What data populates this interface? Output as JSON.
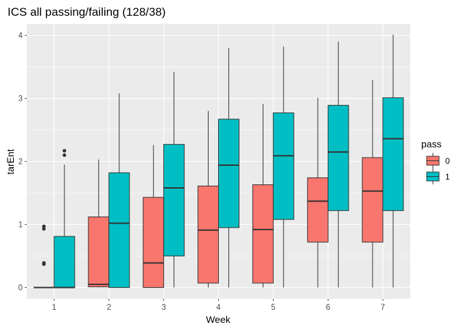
{
  "chart_data": {
    "type": "boxplot",
    "title": "ICS all passing/failing (128/38)",
    "xlabel": "Week",
    "ylabel": "tarEnt",
    "categories": [
      "1",
      "2",
      "3",
      "4",
      "5",
      "6",
      "7"
    ],
    "ylim": [
      -0.18,
      4.18
    ],
    "yticks": [
      0,
      1,
      2,
      3,
      4
    ],
    "grid": true,
    "legend": {
      "title": "pass",
      "position": "right"
    },
    "series": [
      {
        "name": "0",
        "color": "#F8766D",
        "boxes": [
          {
            "week": "1",
            "min": 0,
            "q1": 0,
            "median": 0,
            "q3": 0,
            "max": 0,
            "outliers": [
              0.97,
              0.93,
              0.39,
              0.37
            ]
          },
          {
            "week": "2",
            "min": 0,
            "q1": 0.01,
            "median": 0.05,
            "q3": 1.12,
            "max": 2.03,
            "outliers": []
          },
          {
            "week": "3",
            "min": 0,
            "q1": 0,
            "median": 0.39,
            "q3": 1.43,
            "max": 2.26,
            "outliers": []
          },
          {
            "week": "4",
            "min": 0,
            "q1": 0.07,
            "median": 0.91,
            "q3": 1.61,
            "max": 2.8,
            "outliers": []
          },
          {
            "week": "5",
            "min": 0,
            "q1": 0.07,
            "median": 0.92,
            "q3": 1.63,
            "max": 2.91,
            "outliers": []
          },
          {
            "week": "6",
            "min": 0,
            "q1": 0.72,
            "median": 1.37,
            "q3": 1.74,
            "max": 3.01,
            "outliers": []
          },
          {
            "week": "7",
            "min": 0,
            "q1": 0.72,
            "median": 1.53,
            "q3": 2.06,
            "max": 3.29,
            "outliers": []
          }
        ]
      },
      {
        "name": "1",
        "color": "#00BFC4",
        "boxes": [
          {
            "week": "1",
            "min": 0,
            "q1": 0,
            "median": 0,
            "q3": 0.81,
            "max": 1.95,
            "outliers": [
              2.17,
              2.1
            ]
          },
          {
            "week": "2",
            "min": 0,
            "q1": 0,
            "median": 1.02,
            "q3": 1.82,
            "max": 3.08,
            "outliers": []
          },
          {
            "week": "3",
            "min": 0,
            "q1": 0.5,
            "median": 1.58,
            "q3": 2.27,
            "max": 3.42,
            "outliers": []
          },
          {
            "week": "4",
            "min": 0,
            "q1": 0.95,
            "median": 1.94,
            "q3": 2.67,
            "max": 3.8,
            "outliers": []
          },
          {
            "week": "5",
            "min": 0,
            "q1": 1.08,
            "median": 2.09,
            "q3": 2.77,
            "max": 3.82,
            "outliers": []
          },
          {
            "week": "6",
            "min": 0,
            "q1": 1.22,
            "median": 2.15,
            "q3": 2.89,
            "max": 3.9,
            "outliers": []
          },
          {
            "week": "7",
            "min": 0,
            "q1": 1.22,
            "median": 2.36,
            "q3": 3.01,
            "max": 4.01,
            "outliers": []
          }
        ]
      }
    ]
  },
  "style": {
    "panel_bg": "#EBEBEB",
    "grid_major": "#FFFFFF",
    "outline": "#333333",
    "tick_color": "#4D4D4D"
  }
}
